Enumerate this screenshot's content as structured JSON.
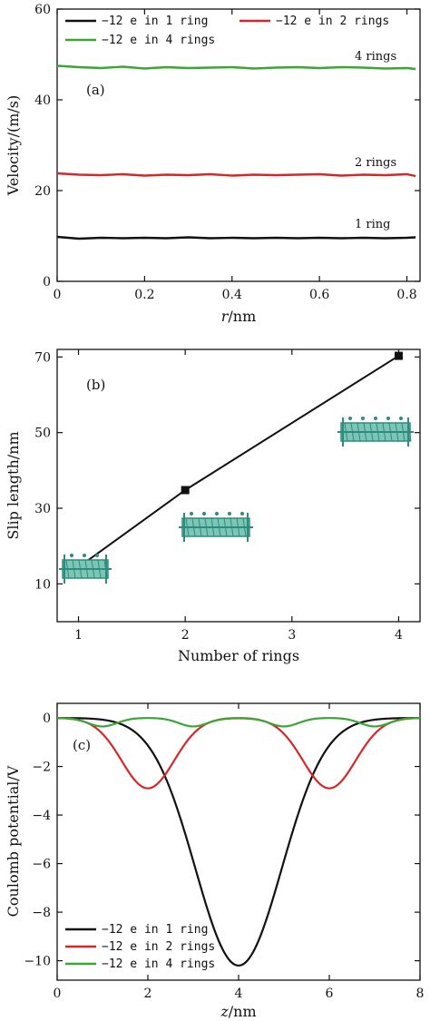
{
  "chart_data": [
    {
      "type": "line",
      "panel_label": "(a)",
      "xlabel_var": "r",
      "xlabel_unit": "/nm",
      "ylabel": "Velocity/(m/s)",
      "xlim": [
        0,
        0.83
      ],
      "ylim": [
        0,
        60
      ],
      "xticks": [
        "0",
        "0.2",
        "0.4",
        "0.6",
        "0.8"
      ],
      "yticks": [
        "0",
        "20",
        "40",
        "60"
      ],
      "xtick_values": [
        0,
        0.2,
        0.4,
        0.6,
        0.8
      ],
      "ytick_values": [
        0,
        20,
        40,
        60
      ],
      "legend": "top",
      "series": [
        {
          "name": "−12 e in 1 ring",
          "color": "#111111",
          "annotation": "1 ring",
          "x": [
            0,
            0.05,
            0.1,
            0.15,
            0.2,
            0.25,
            0.3,
            0.35,
            0.4,
            0.45,
            0.5,
            0.55,
            0.6,
            0.65,
            0.7,
            0.75,
            0.8,
            0.82
          ],
          "y": [
            9.8,
            9.4,
            9.6,
            9.5,
            9.6,
            9.5,
            9.7,
            9.5,
            9.6,
            9.5,
            9.6,
            9.5,
            9.6,
            9.5,
            9.6,
            9.5,
            9.6,
            9.7
          ]
        },
        {
          "name": "−12 e in 2 rings",
          "color": "#d62728",
          "annotation": "2 rings",
          "x": [
            0,
            0.05,
            0.1,
            0.15,
            0.2,
            0.25,
            0.3,
            0.35,
            0.4,
            0.45,
            0.5,
            0.55,
            0.6,
            0.65,
            0.7,
            0.75,
            0.8,
            0.82
          ],
          "y": [
            23.8,
            23.5,
            23.4,
            23.6,
            23.3,
            23.5,
            23.4,
            23.6,
            23.3,
            23.5,
            23.4,
            23.5,
            23.6,
            23.3,
            23.5,
            23.4,
            23.6,
            23.2
          ]
        },
        {
          "name": "−12 e in 4 rings",
          "color": "#3aa635",
          "annotation": "4 rings",
          "x": [
            0,
            0.05,
            0.1,
            0.15,
            0.2,
            0.25,
            0.3,
            0.35,
            0.4,
            0.45,
            0.5,
            0.55,
            0.6,
            0.65,
            0.7,
            0.75,
            0.8,
            0.82
          ],
          "y": [
            47.5,
            47.2,
            47.0,
            47.3,
            46.9,
            47.2,
            47.0,
            47.1,
            47.2,
            46.9,
            47.1,
            47.2,
            47.0,
            47.2,
            47.1,
            46.9,
            47.0,
            46.8
          ]
        }
      ]
    },
    {
      "type": "line",
      "panel_label": "(b)",
      "xlabel": "Number of rings",
      "ylabel": "Slip length/nm",
      "xlim": [
        0.8,
        4.2
      ],
      "ylim": [
        0,
        72
      ],
      "xticks": [
        "1",
        "2",
        "3",
        "4"
      ],
      "yticks": [
        "10",
        "30",
        "50",
        "70"
      ],
      "xtick_values": [
        1,
        2,
        3,
        4
      ],
      "ytick_values": [
        10,
        30,
        50,
        70
      ],
      "series": [
        {
          "color": "#111111",
          "marker": "square",
          "x": [
            1,
            2,
            4
          ],
          "y": [
            14.4,
            34.8,
            70.3
          ]
        }
      ]
    },
    {
      "type": "line",
      "panel_label": "(c)",
      "xlabel_var": "z",
      "xlabel_unit": "/nm",
      "ylabel": "Coulomb potential/V",
      "xlim": [
        0,
        8
      ],
      "ylim": [
        -10.8,
        0.6
      ],
      "xticks": [
        "0",
        "2",
        "4",
        "6",
        "8"
      ],
      "yticks": [
        "0",
        "−2",
        "−4",
        "−6",
        "−8",
        "−10"
      ],
      "xtick_values": [
        0,
        2,
        4,
        6,
        8
      ],
      "ytick_values": [
        0,
        -2,
        -4,
        -6,
        -8,
        -10
      ],
      "legend": "bottom-left",
      "series": [
        {
          "name": "−12 e in 1 ring",
          "color": "#111111",
          "center": [
            4
          ],
          "depth": -10.2,
          "width": 1.35
        },
        {
          "name": "−12 e in 2 rings",
          "color": "#d62728",
          "center": [
            2,
            6
          ],
          "depth": -2.9,
          "width": 0.82
        },
        {
          "name": "−12 e in 4 rings",
          "color": "#3aa635",
          "center": [
            1,
            3,
            5,
            7
          ],
          "depth": -0.35,
          "width": 0.45
        }
      ]
    }
  ]
}
